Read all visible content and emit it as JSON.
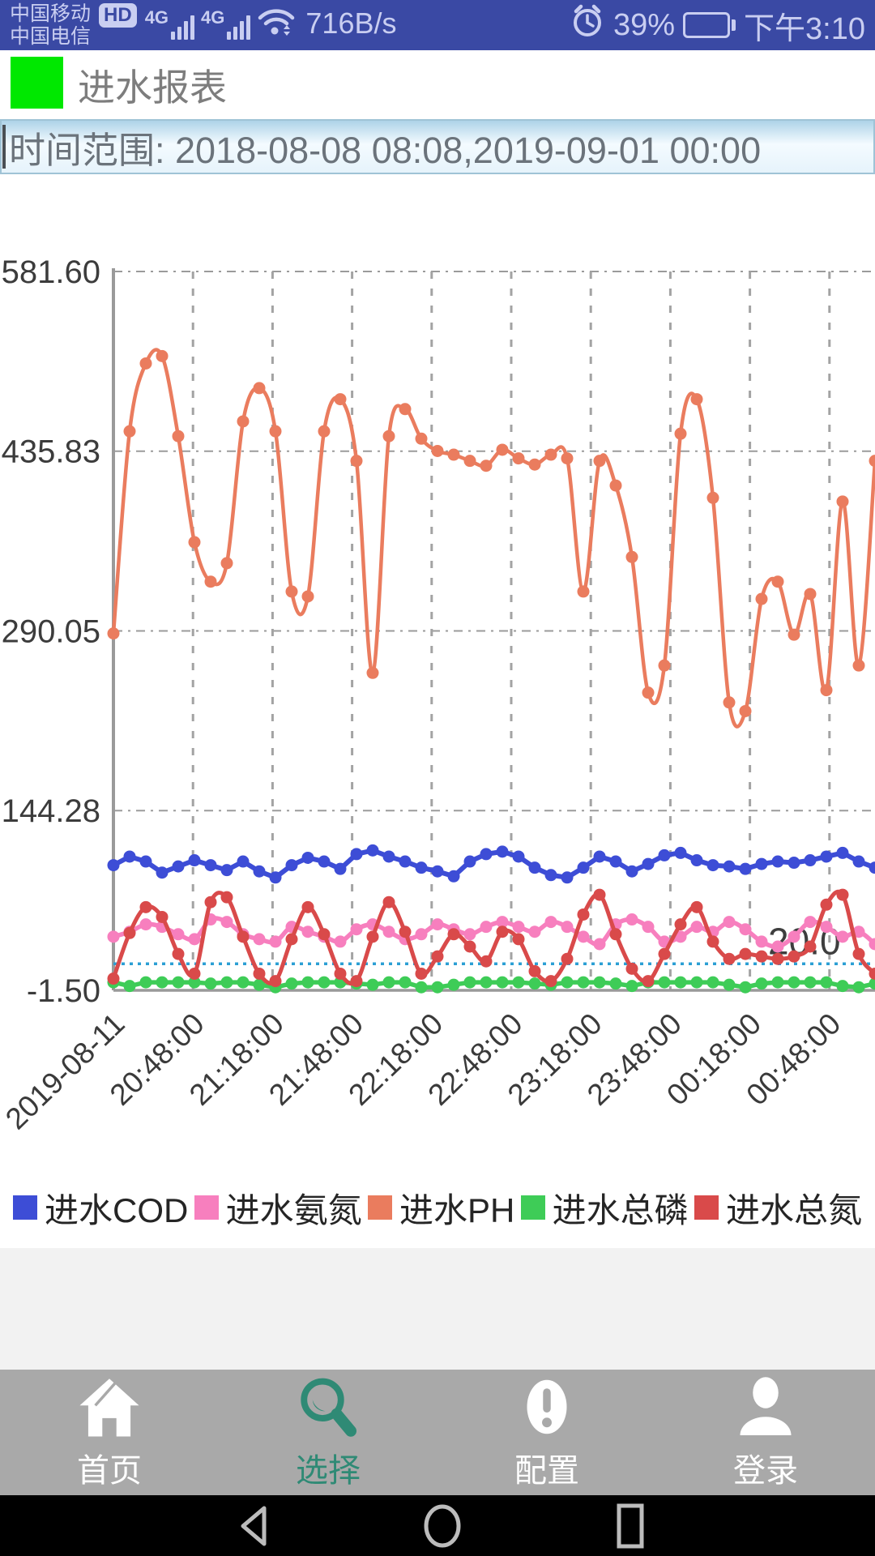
{
  "status_bar": {
    "carrier_primary": "中国移动",
    "carrier_secondary": "中国电信",
    "hd_badge": "HD",
    "network_badges": [
      "4G",
      "4G"
    ],
    "net_speed": "716B/s",
    "battery_percent": "39%",
    "battery_level": 39,
    "time": "下午3:10",
    "bg_color": "#3a49a4"
  },
  "header": {
    "title": "进水报表",
    "accent_color": "#00e800"
  },
  "time_range": {
    "value": "时间范围: 2018-08-08 08:08,2019-09-01 00:00"
  },
  "chart_data": {
    "type": "line",
    "title": "",
    "xlabel": "",
    "ylabel": "",
    "ylim": [
      -1.5,
      581.6
    ],
    "y_ticks": [
      581.6,
      435.83,
      290.05,
      144.28,
      -1.5
    ],
    "y_tick_labels": [
      "581.60",
      "435.83",
      "290.05",
      "144.28",
      "-1.50"
    ],
    "x_labels": [
      "2019-08-11",
      "20:48:00",
      "21:18:00",
      "21:48:00",
      "22:18:00",
      "22:48:00",
      "23:18:00",
      "23:48:00",
      "00:18:00",
      "00:48:00"
    ],
    "grid": true,
    "legend_position": "bottom",
    "threshold": {
      "value": 20.0,
      "label": "20.0",
      "color": "#2b9fd4"
    },
    "series": [
      {
        "name": "进水COD",
        "color": "#3d4dd6",
        "smooth": false,
        "width": 6,
        "values": [
          100,
          107,
          103,
          94,
          99,
          104,
          100,
          96,
          103,
          95,
          90,
          100,
          106,
          103,
          97,
          109,
          112,
          107,
          103,
          98,
          95,
          91,
          103,
          109,
          111,
          107,
          98,
          92,
          90,
          98,
          107,
          103,
          95,
          101,
          108,
          110,
          104,
          100,
          99,
          97,
          101,
          103,
          102,
          104,
          107,
          110,
          103,
          98
        ]
      },
      {
        "name": "进水氨氮",
        "color": "#f77fbe",
        "smooth": true,
        "width": 5.5,
        "values": [
          42,
          46,
          52,
          50,
          44,
          40,
          56,
          54,
          44,
          40,
          38,
          50,
          46,
          42,
          38,
          48,
          52,
          46,
          40,
          44,
          52,
          48,
          44,
          50,
          54,
          50,
          46,
          54,
          50,
          42,
          36,
          52,
          56,
          50,
          38,
          42,
          50,
          46,
          54,
          48,
          38,
          34,
          42,
          54,
          50,
          42,
          46,
          36
        ]
      },
      {
        "name": "进水PH",
        "color": "#ea7c5e",
        "smooth": true,
        "width": 4.5,
        "values": [
          288,
          452,
          507,
          513,
          448,
          362,
          330,
          345,
          460,
          487,
          452,
          322,
          318,
          452,
          478,
          428,
          256,
          448,
          470,
          446,
          436,
          433,
          428,
          424,
          437,
          430,
          425,
          433,
          430,
          322,
          428,
          408,
          350,
          240,
          262,
          450,
          478,
          398,
          232,
          225,
          316,
          330,
          287,
          320,
          242,
          395,
          262,
          428
        ]
      },
      {
        "name": "进水总磷",
        "color": "#3ecc57",
        "smooth": false,
        "width": 5.5,
        "values": [
          5,
          2,
          5,
          5,
          5,
          5,
          4,
          5,
          5,
          3,
          1,
          4,
          5,
          5,
          5,
          4,
          3,
          5,
          5,
          1,
          1,
          3,
          5,
          5,
          5,
          5,
          4,
          3,
          5,
          5,
          5,
          4,
          2,
          5,
          5,
          5,
          5,
          5,
          3,
          1,
          4,
          5,
          5,
          5,
          5,
          2,
          1,
          4
        ]
      },
      {
        "name": "进水总氮",
        "color": "#d94a4a",
        "smooth": true,
        "width": 5,
        "values": [
          8,
          45,
          66,
          58,
          28,
          12,
          70,
          74,
          42,
          12,
          6,
          40,
          66,
          44,
          12,
          6,
          42,
          70,
          46,
          12,
          26,
          44,
          34,
          22,
          46,
          40,
          14,
          6,
          24,
          60,
          76,
          44,
          16,
          6,
          28,
          52,
          66,
          38,
          24,
          28,
          26,
          24,
          26,
          34,
          68,
          76,
          28,
          12
        ]
      }
    ]
  },
  "bottom_nav": {
    "active_color": "#2f8a75",
    "items": [
      {
        "label": "首页",
        "icon": "home-icon",
        "active": false
      },
      {
        "label": "选择",
        "icon": "search-icon",
        "active": true
      },
      {
        "label": "配置",
        "icon": "config-icon",
        "active": false
      },
      {
        "label": "登录",
        "icon": "login-icon",
        "active": false
      }
    ]
  },
  "android_nav": {
    "buttons": [
      "back",
      "home",
      "recents"
    ]
  }
}
